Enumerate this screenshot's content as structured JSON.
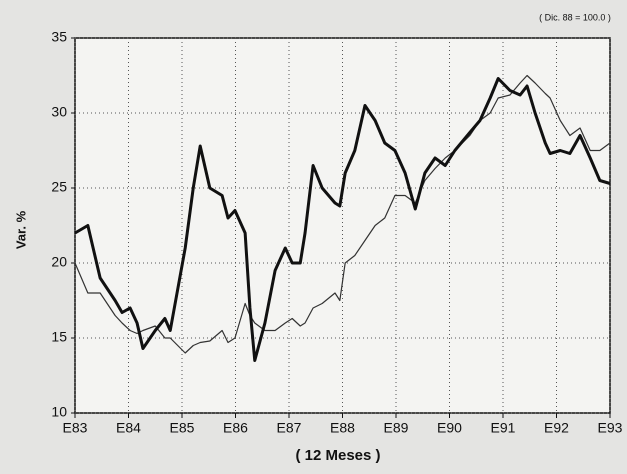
{
  "chart_data": {
    "type": "line",
    "annotation": "( Dic. 88 = 100.0 )",
    "y_label": "Var. %",
    "x_label": "( 12 Meses )",
    "x": [
      1983,
      1983.24,
      1983.47,
      1983.75,
      1983.88,
      1984.03,
      1984.16,
      1984.27,
      1984.5,
      1984.68,
      1984.78,
      1985.06,
      1985.21,
      1985.34,
      1985.52,
      1985.75,
      1985.86,
      1985.99,
      1986.18,
      1986.27,
      1986.36,
      1986.55,
      1986.74,
      1986.93,
      1987.06,
      1987.21,
      1987.3,
      1987.45,
      1987.62,
      1987.86,
      1987.95,
      1988.05,
      1988.23,
      1988.42,
      1988.61,
      1988.79,
      1988.98,
      1989.17,
      1989.36,
      1989.54,
      1989.73,
      1989.92,
      1990.1,
      1990.38,
      1990.57,
      1990.76,
      1990.91,
      1991.13,
      1991.32,
      1991.45,
      1991.6,
      1991.79,
      1991.88,
      1992.07,
      1992.25,
      1992.44,
      1992.63,
      1992.81,
      1993
    ],
    "series": [
      {
        "color": "#111111",
        "values": [
          22,
          22.5,
          19,
          17.5,
          16.7,
          17,
          16,
          14.3,
          15.5,
          16.3,
          15.5,
          21,
          25,
          27.8,
          25,
          24.5,
          23,
          23.5,
          22,
          17,
          13.5,
          16,
          19.5,
          21,
          20,
          20,
          22,
          26.5,
          25,
          24,
          23.8,
          26,
          27.5,
          30.5,
          29.5,
          28,
          27.5,
          26,
          23.6,
          26,
          27,
          26.5,
          27.5,
          28.7,
          29.5,
          31,
          32.3,
          31.5,
          31.2,
          31.8,
          30,
          28,
          27.3,
          27.5,
          27.3,
          28.5,
          27,
          25.5,
          25.3
        ]
      },
      {
        "color": "#333333",
        "values": [
          20,
          18,
          18,
          16.5,
          16,
          15.5,
          15.3,
          15.5,
          15.8,
          15,
          15,
          14,
          14.5,
          14.7,
          14.8,
          15.5,
          14.7,
          15,
          17.3,
          16.5,
          16,
          15.5,
          15.5,
          16,
          16.3,
          15.8,
          16,
          17,
          17.3,
          18,
          17.5,
          20,
          20.5,
          21.5,
          22.5,
          23,
          24.5,
          24.5,
          24,
          25.5,
          26.3,
          27,
          27.5,
          28.5,
          29.5,
          30,
          31,
          31.2,
          32,
          32.5,
          32,
          31.3,
          31,
          29.5,
          28.5,
          29,
          27.5,
          27.5,
          28
        ]
      }
    ],
    "xlim": [
      1983,
      1993
    ],
    "xticks": [
      {
        "value": 1983,
        "label": "E83"
      },
      {
        "value": 1984,
        "label": "E84"
      },
      {
        "value": 1985,
        "label": "E85"
      },
      {
        "value": 1986,
        "label": "E86"
      },
      {
        "value": 1987,
        "label": "E87"
      },
      {
        "value": 1988,
        "label": "E88"
      },
      {
        "value": 1989,
        "label": "E89"
      },
      {
        "value": 1990,
        "label": "E90"
      },
      {
        "value": 1991,
        "label": "E91"
      },
      {
        "value": 1992,
        "label": "E92"
      },
      {
        "value": 1993,
        "label": "E93"
      }
    ],
    "ylim": [
      10,
      35
    ],
    "yticks": [
      10,
      15,
      20,
      25,
      30,
      35
    ],
    "grid": true
  }
}
